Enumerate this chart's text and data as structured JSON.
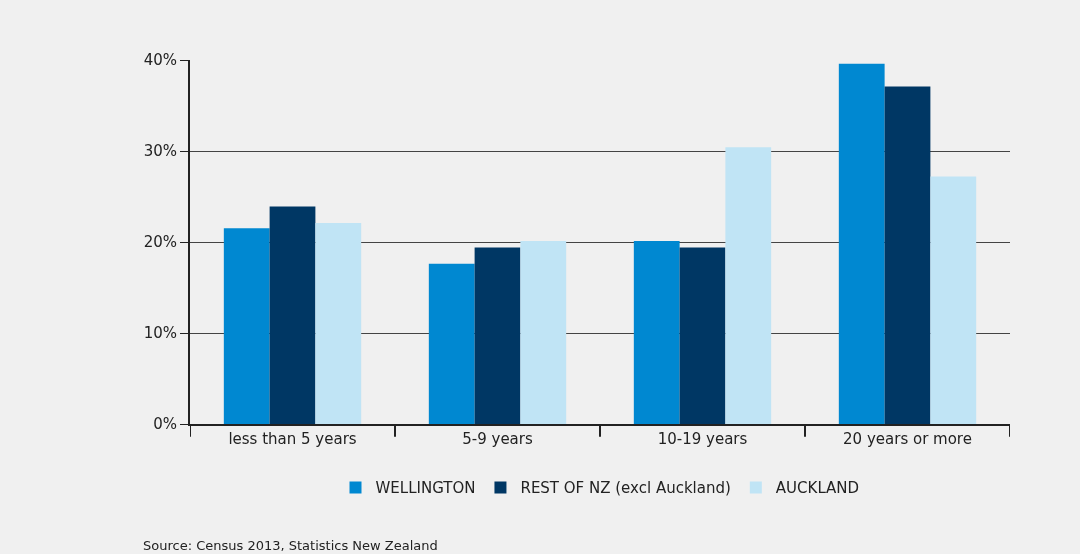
{
  "chart_data": {
    "type": "bar",
    "categories": [
      "less than 5 years",
      "5-9 years",
      "10-19 years",
      "20 years or more"
    ],
    "series": [
      {
        "name": "WELLINGTON",
        "color": "#0088d1",
        "values": [
          21.5,
          17.6,
          20.1,
          39.6
        ]
      },
      {
        "name": "REST OF NZ (excl Auckland)",
        "color": "#003764",
        "values": [
          23.9,
          19.4,
          19.4,
          37.1
        ]
      },
      {
        "name": "AUCKLAND",
        "color": "#c0e4f5",
        "values": [
          22.1,
          20.1,
          30.4,
          27.2
        ]
      }
    ],
    "ylim": [
      0,
      40
    ],
    "yticks": [
      {
        "value": 0,
        "label": "0%"
      },
      {
        "value": 10,
        "label": "10%"
      },
      {
        "value": 20,
        "label": "20%"
      },
      {
        "value": 30,
        "label": "30%"
      },
      {
        "value": 40,
        "label": "40%"
      }
    ],
    "grid": "y",
    "legend": "bottom",
    "annotations": [
      "Source: Census 2013, Statistics New Zealand"
    ]
  }
}
